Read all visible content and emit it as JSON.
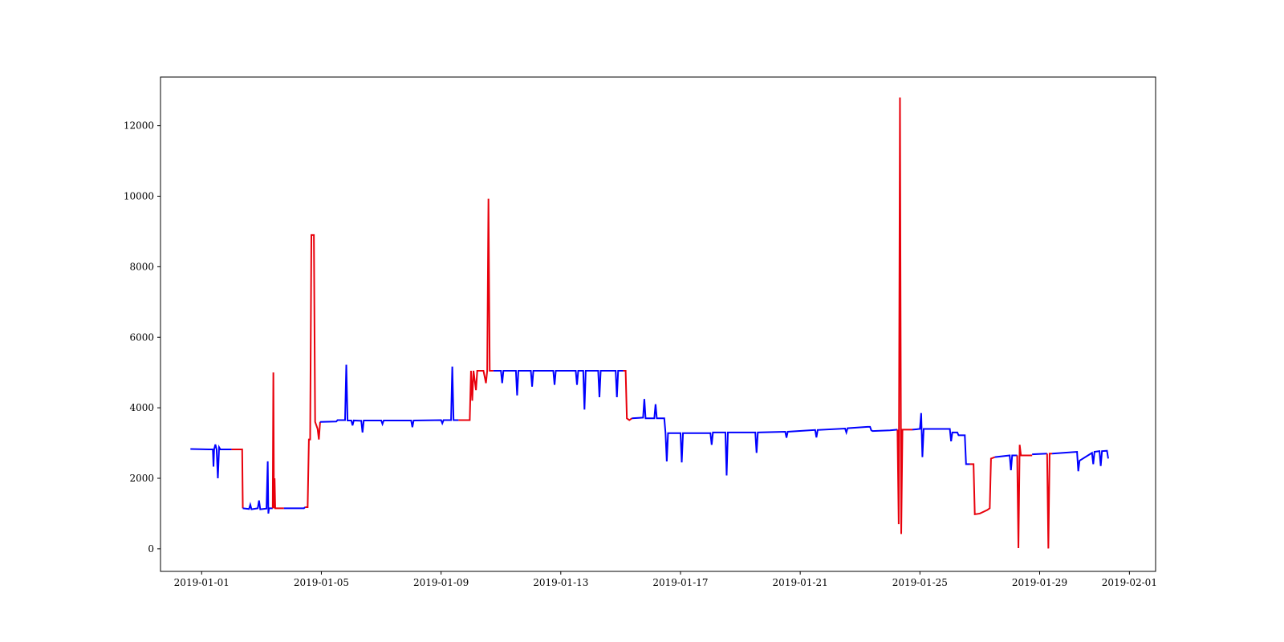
{
  "chart_data": {
    "type": "line",
    "title": "",
    "xlabel": "",
    "ylabel": "",
    "x_axis": "date",
    "xlim": [
      "2018-12-30T15:00",
      "2019-02-01T21:00"
    ],
    "ylim": [
      -640,
      13380
    ],
    "x_ticks": [
      "2019-01-01",
      "2019-01-05",
      "2019-01-09",
      "2019-01-13",
      "2019-01-17",
      "2019-01-21",
      "2019-01-25",
      "2019-01-29",
      "2019-02-01"
    ],
    "y_ticks": [
      0,
      2000,
      4000,
      6000,
      8000,
      10000,
      12000
    ],
    "grid": false,
    "legend": "none",
    "colors": {
      "normal": "#0000ff",
      "anomaly": "#e8000b",
      "axes": "#000000",
      "background": "#ffffff"
    },
    "series": [
      {
        "color": "normal",
        "points": [
          [
            "2018-12-31T15:00",
            2830
          ],
          [
            "2019-01-01T06:00",
            2820
          ],
          [
            "2019-01-01T09:00",
            2820
          ],
          [
            "2019-01-01T09:30",
            2330
          ],
          [
            "2019-01-01T10:00",
            2820
          ],
          [
            "2019-01-01T11:00",
            2960
          ],
          [
            "2019-01-01T12:00",
            2820
          ],
          [
            "2019-01-01T13:00",
            2000
          ],
          [
            "2019-01-01T14:00",
            2880
          ],
          [
            "2019-01-01T15:00",
            2820
          ],
          [
            "2019-01-02T00:00",
            2820
          ]
        ]
      },
      {
        "color": "anomaly",
        "points": [
          [
            "2019-01-02T00:00",
            2820
          ],
          [
            "2019-01-02T08:30",
            2820
          ],
          [
            "2019-01-02T09:00",
            1150
          ]
        ]
      },
      {
        "color": "normal",
        "points": [
          [
            "2019-01-02T09:00",
            1150
          ],
          [
            "2019-01-02T14:00",
            1130
          ],
          [
            "2019-01-02T15:00",
            1250
          ],
          [
            "2019-01-02T16:00",
            1120
          ],
          [
            "2019-01-02T21:00",
            1150
          ],
          [
            "2019-01-02T22:00",
            1370
          ],
          [
            "2019-01-02T23:00",
            1120
          ],
          [
            "2019-01-03T04:00",
            1140
          ],
          [
            "2019-01-03T05:00",
            2480
          ],
          [
            "2019-01-03T05:30",
            1000
          ],
          [
            "2019-01-03T06:00",
            1150
          ],
          [
            "2019-01-03T09:00",
            1150
          ]
        ]
      },
      {
        "color": "anomaly",
        "points": [
          [
            "2019-01-03T09:00",
            1150
          ],
          [
            "2019-01-03T09:30",
            5000
          ],
          [
            "2019-01-03T10:00",
            1150
          ],
          [
            "2019-01-03T10:30",
            2000
          ],
          [
            "2019-01-03T11:00",
            1150
          ],
          [
            "2019-01-03T18:00",
            1150
          ]
        ]
      },
      {
        "color": "normal",
        "points": [
          [
            "2019-01-03T18:00",
            1150
          ],
          [
            "2019-01-04T10:00",
            1150
          ],
          [
            "2019-01-04T11:00",
            1180
          ]
        ]
      },
      {
        "color": "anomaly",
        "points": [
          [
            "2019-01-04T11:00",
            1180
          ],
          [
            "2019-01-04T13:00",
            1180
          ],
          [
            "2019-01-04T14:00",
            3100
          ],
          [
            "2019-01-04T15:00",
            3100
          ],
          [
            "2019-01-04T16:00",
            8900
          ],
          [
            "2019-01-04T18:00",
            8900
          ],
          [
            "2019-01-04T19:00",
            3600
          ],
          [
            "2019-01-04T21:00",
            3400
          ],
          [
            "2019-01-04T22:00",
            3100
          ],
          [
            "2019-01-04T23:00",
            3600
          ]
        ]
      },
      {
        "color": "normal",
        "points": [
          [
            "2019-01-04T23:00",
            3600
          ],
          [
            "2019-01-05T12:00",
            3610
          ],
          [
            "2019-01-05T13:00",
            3650
          ],
          [
            "2019-01-05T19:00",
            3650
          ],
          [
            "2019-01-05T20:00",
            5220
          ],
          [
            "2019-01-05T21:00",
            3640
          ],
          [
            "2019-01-06T00:00",
            3640
          ],
          [
            "2019-01-06T01:00",
            3500
          ],
          [
            "2019-01-06T02:00",
            3640
          ],
          [
            "2019-01-06T08:00",
            3630
          ],
          [
            "2019-01-06T09:00",
            3300
          ],
          [
            "2019-01-06T10:00",
            3640
          ],
          [
            "2019-01-07T00:00",
            3640
          ],
          [
            "2019-01-07T01:00",
            3540
          ],
          [
            "2019-01-07T02:00",
            3640
          ],
          [
            "2019-01-08T00:00",
            3640
          ],
          [
            "2019-01-08T01:00",
            3450
          ],
          [
            "2019-01-08T02:00",
            3640
          ],
          [
            "2019-01-09T00:00",
            3650
          ],
          [
            "2019-01-09T01:00",
            3560
          ],
          [
            "2019-01-09T02:00",
            3650
          ],
          [
            "2019-01-09T08:00",
            3650
          ],
          [
            "2019-01-09T09:00",
            5170
          ],
          [
            "2019-01-09T10:00",
            3650
          ],
          [
            "2019-01-09T14:00",
            3650
          ]
        ]
      },
      {
        "color": "anomaly",
        "points": [
          [
            "2019-01-09T14:00",
            3650
          ],
          [
            "2019-01-09T23:00",
            3650
          ],
          [
            "2019-01-10T00:00",
            5050
          ],
          [
            "2019-01-10T01:00",
            4200
          ],
          [
            "2019-01-10T02:00",
            5050
          ],
          [
            "2019-01-10T04:00",
            4500
          ],
          [
            "2019-01-10T05:00",
            5050
          ],
          [
            "2019-01-10T10:00",
            5050
          ],
          [
            "2019-01-10T12:00",
            4700
          ],
          [
            "2019-01-10T13:00",
            5050
          ],
          [
            "2019-01-10T14:00",
            9930
          ],
          [
            "2019-01-10T15:00",
            5050
          ],
          [
            "2019-01-10T18:00",
            5050
          ]
        ]
      },
      {
        "color": "normal",
        "points": [
          [
            "2019-01-10T18:00",
            5050
          ],
          [
            "2019-01-11T00:00",
            5050
          ],
          [
            "2019-01-11T01:00",
            4700
          ],
          [
            "2019-01-11T02:00",
            5050
          ],
          [
            "2019-01-11T12:00",
            5050
          ],
          [
            "2019-01-11T13:00",
            4350
          ],
          [
            "2019-01-11T14:00",
            5050
          ],
          [
            "2019-01-12T00:00",
            5050
          ],
          [
            "2019-01-12T01:00",
            4600
          ],
          [
            "2019-01-12T02:00",
            5050
          ],
          [
            "2019-01-12T18:00",
            5050
          ],
          [
            "2019-01-12T19:00",
            4650
          ],
          [
            "2019-01-12T20:00",
            5050
          ],
          [
            "2019-01-13T12:00",
            5050
          ],
          [
            "2019-01-13T13:00",
            4650
          ],
          [
            "2019-01-13T14:00",
            5050
          ],
          [
            "2019-01-13T18:00",
            5050
          ],
          [
            "2019-01-13T19:00",
            3950
          ],
          [
            "2019-01-13T20:00",
            5050
          ],
          [
            "2019-01-14T06:00",
            5050
          ],
          [
            "2019-01-14T07:00",
            4300
          ],
          [
            "2019-01-14T08:00",
            5050
          ],
          [
            "2019-01-14T20:00",
            5050
          ],
          [
            "2019-01-14T21:00",
            4300
          ],
          [
            "2019-01-14T22:00",
            5050
          ],
          [
            "2019-01-15T02:00",
            5050
          ]
        ]
      },
      {
        "color": "anomaly",
        "points": [
          [
            "2019-01-15T02:00",
            5050
          ],
          [
            "2019-01-15T04:00",
            5050
          ],
          [
            "2019-01-15T05:00",
            3700
          ],
          [
            "2019-01-15T07:00",
            3650
          ],
          [
            "2019-01-15T09:00",
            3700
          ]
        ]
      },
      {
        "color": "normal",
        "points": [
          [
            "2019-01-15T09:00",
            3700
          ],
          [
            "2019-01-15T18:00",
            3720
          ],
          [
            "2019-01-15T19:00",
            4250
          ],
          [
            "2019-01-15T20:00",
            3700
          ],
          [
            "2019-01-16T03:00",
            3700
          ],
          [
            "2019-01-16T04:00",
            4100
          ],
          [
            "2019-01-16T05:00",
            3700
          ],
          [
            "2019-01-16T11:00",
            3700
          ],
          [
            "2019-01-16T12:00",
            3280
          ],
          [
            "2019-01-16T13:00",
            2480
          ],
          [
            "2019-01-16T14:00",
            3280
          ],
          [
            "2019-01-17T00:00",
            3280
          ],
          [
            "2019-01-17T01:00",
            2450
          ],
          [
            "2019-01-17T02:00",
            3280
          ],
          [
            "2019-01-18T00:00",
            3280
          ],
          [
            "2019-01-18T01:00",
            2950
          ],
          [
            "2019-01-18T02:00",
            3300
          ],
          [
            "2019-01-18T12:00",
            3300
          ],
          [
            "2019-01-18T13:00",
            2080
          ],
          [
            "2019-01-18T14:00",
            3300
          ],
          [
            "2019-01-19T12:00",
            3300
          ],
          [
            "2019-01-19T13:00",
            2720
          ],
          [
            "2019-01-19T14:00",
            3300
          ],
          [
            "2019-01-20T12:00",
            3320
          ],
          [
            "2019-01-20T13:00",
            3150
          ],
          [
            "2019-01-20T14:00",
            3320
          ],
          [
            "2019-01-21T12:00",
            3370
          ],
          [
            "2019-01-21T13:00",
            3160
          ],
          [
            "2019-01-21T14:00",
            3370
          ],
          [
            "2019-01-22T12:00",
            3410
          ],
          [
            "2019-01-22T13:00",
            3300
          ],
          [
            "2019-01-22T14:00",
            3420
          ],
          [
            "2019-01-23T06:00",
            3460
          ],
          [
            "2019-01-23T08:00",
            3460
          ],
          [
            "2019-01-23T09:00",
            3360
          ],
          [
            "2019-01-23T10:00",
            3340
          ],
          [
            "2019-01-24T00:00",
            3360
          ],
          [
            "2019-01-24T06:00",
            3380
          ]
        ]
      },
      {
        "color": "anomaly",
        "points": [
          [
            "2019-01-24T06:00",
            3380
          ],
          [
            "2019-01-24T07:00",
            700
          ],
          [
            "2019-01-24T08:00",
            12800
          ],
          [
            "2019-01-24T09:00",
            420
          ],
          [
            "2019-01-24T10:00",
            3380
          ],
          [
            "2019-01-24T18:00",
            3380
          ]
        ]
      },
      {
        "color": "normal",
        "points": [
          [
            "2019-01-24T18:00",
            3380
          ],
          [
            "2019-01-25T00:00",
            3400
          ],
          [
            "2019-01-25T01:00",
            3850
          ],
          [
            "2019-01-25T02:00",
            2600
          ],
          [
            "2019-01-25T03:00",
            3400
          ],
          [
            "2019-01-26T00:00",
            3400
          ],
          [
            "2019-01-26T01:00",
            3050
          ],
          [
            "2019-01-26T02:00",
            3300
          ],
          [
            "2019-01-26T06:00",
            3300
          ],
          [
            "2019-01-26T07:00",
            3220
          ],
          [
            "2019-01-26T12:00",
            3220
          ],
          [
            "2019-01-26T13:00",
            2400
          ],
          [
            "2019-01-26T14:00",
            2400
          ],
          [
            "2019-01-26T16:00",
            2400
          ]
        ]
      },
      {
        "color": "anomaly",
        "points": [
          [
            "2019-01-26T16:00",
            2400
          ],
          [
            "2019-01-26T19:00",
            2400
          ],
          [
            "2019-01-26T20:00",
            980
          ],
          [
            "2019-01-27T00:00",
            1000
          ],
          [
            "2019-01-27T06:00",
            1100
          ],
          [
            "2019-01-27T08:00",
            1150
          ],
          [
            "2019-01-27T09:00",
            2560
          ],
          [
            "2019-01-27T12:00",
            2600
          ]
        ]
      },
      {
        "color": "normal",
        "points": [
          [
            "2019-01-27T12:00",
            2600
          ],
          [
            "2019-01-28T00:00",
            2650
          ],
          [
            "2019-01-28T01:00",
            2230
          ],
          [
            "2019-01-28T02:00",
            2650
          ],
          [
            "2019-01-28T06:00",
            2650
          ]
        ]
      },
      {
        "color": "anomaly",
        "points": [
          [
            "2019-01-28T06:00",
            2650
          ],
          [
            "2019-01-28T07:00",
            20
          ],
          [
            "2019-01-28T08:00",
            2950
          ],
          [
            "2019-01-28T09:00",
            2650
          ],
          [
            "2019-01-28T18:00",
            2650
          ]
        ]
      },
      {
        "color": "normal",
        "points": [
          [
            "2019-01-28T18:00",
            2680
          ],
          [
            "2019-01-29T06:00",
            2700
          ]
        ]
      },
      {
        "color": "anomaly",
        "points": [
          [
            "2019-01-29T06:00",
            2700
          ],
          [
            "2019-01-29T07:00",
            10
          ],
          [
            "2019-01-29T08:00",
            2700
          ],
          [
            "2019-01-29T10:00",
            2700
          ]
        ]
      },
      {
        "color": "normal",
        "points": [
          [
            "2019-01-29T10:00",
            2700
          ],
          [
            "2019-01-30T06:00",
            2750
          ],
          [
            "2019-01-30T07:00",
            2200
          ],
          [
            "2019-01-30T08:00",
            2500
          ],
          [
            "2019-01-30T18:00",
            2720
          ],
          [
            "2019-01-30T19:00",
            2400
          ],
          [
            "2019-01-30T20:00",
            2750
          ],
          [
            "2019-01-31T00:00",
            2770
          ],
          [
            "2019-01-31T01:00",
            2350
          ],
          [
            "2019-01-31T02:00",
            2770
          ],
          [
            "2019-01-31T06:00",
            2780
          ],
          [
            "2019-01-31T07:00",
            2560
          ]
        ]
      }
    ]
  }
}
